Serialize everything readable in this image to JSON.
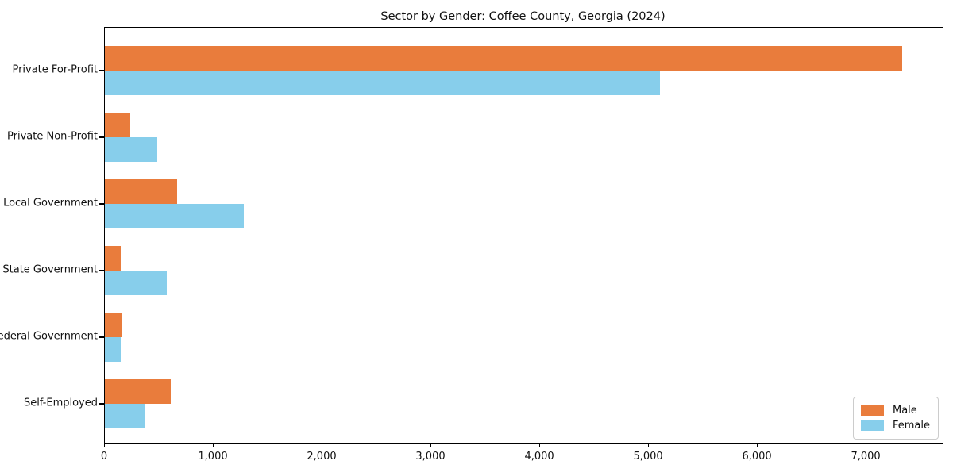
{
  "chart_data": {
    "type": "bar",
    "orientation": "horizontal",
    "title": "Sector by Gender: Coffee County, Georgia (2024)",
    "categories": [
      "Private For-Profit",
      "Private Non-Profit",
      "Local Government",
      "State Government",
      "Federal Government",
      "Self-Employed"
    ],
    "series": [
      {
        "name": "Male",
        "color": "#e97c3c",
        "values": [
          7330,
          235,
          665,
          145,
          150,
          605
        ]
      },
      {
        "name": "Female",
        "color": "#87ceeb",
        "values": [
          5100,
          480,
          1275,
          570,
          145,
          365
        ]
      }
    ],
    "xlabel": "",
    "ylabel": "",
    "xlim": [
      0,
      7700
    ],
    "x_ticks": [
      {
        "value": 0,
        "label": "0"
      },
      {
        "value": 1000,
        "label": "1,000"
      },
      {
        "value": 2000,
        "label": "2,000"
      },
      {
        "value": 3000,
        "label": "3,000"
      },
      {
        "value": 4000,
        "label": "4,000"
      },
      {
        "value": 5000,
        "label": "5,000"
      },
      {
        "value": 6000,
        "label": "6,000"
      },
      {
        "value": 7000,
        "label": "7,000"
      }
    ],
    "grid": false,
    "legend_position": "lower right",
    "frame_color": "#000000",
    "background_color": "#ffffff"
  }
}
